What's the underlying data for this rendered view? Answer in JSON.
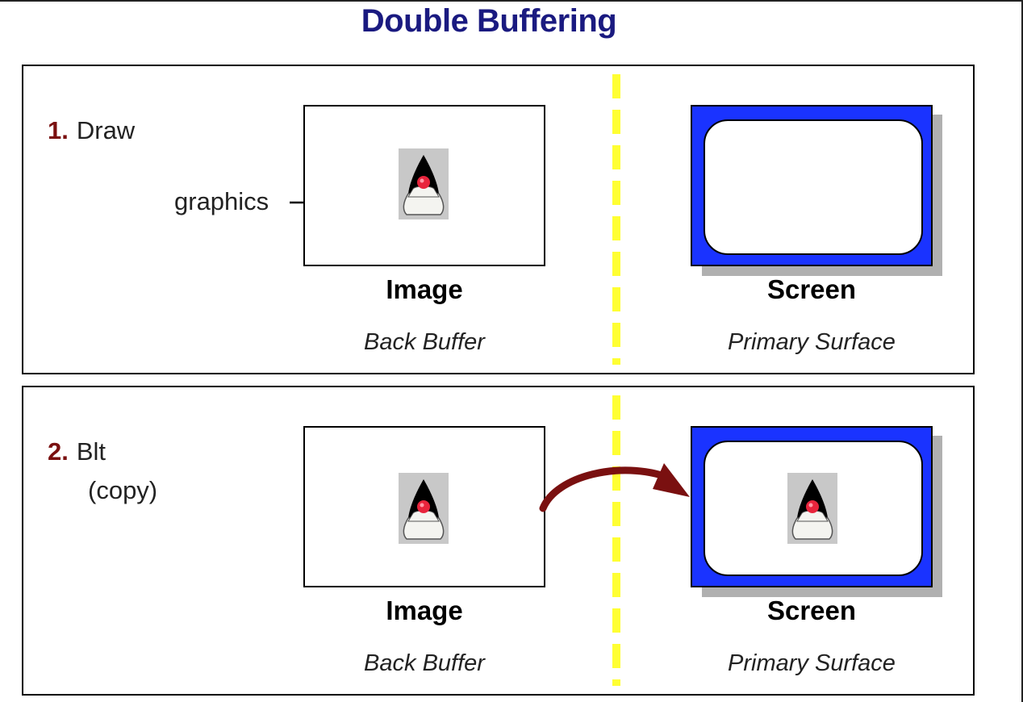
{
  "title": "Double Buffering",
  "colors": {
    "title": "#1a1a80",
    "step_number": "#7a1010",
    "screen_blue": "#1a33ff",
    "divider": "#ffff33",
    "copy_arrow": "#7a1010"
  },
  "panels": [
    {
      "step_number": "1.",
      "step_label": "Draw",
      "graphics_label": "graphics",
      "left_caption": "Image",
      "left_subcaption": "Back Buffer",
      "right_caption": "Screen",
      "right_subcaption": "Primary Surface",
      "icons": [
        "duke-icon",
        "arrow-right-icon"
      ]
    },
    {
      "step_number": "2.",
      "step_label": "Blt",
      "step_label_line2": "(copy)",
      "left_caption": "Image",
      "left_subcaption": "Back Buffer",
      "right_caption": "Screen",
      "right_subcaption": "Primary Surface",
      "icons": [
        "duke-icon",
        "curved-arrow-icon"
      ]
    }
  ]
}
